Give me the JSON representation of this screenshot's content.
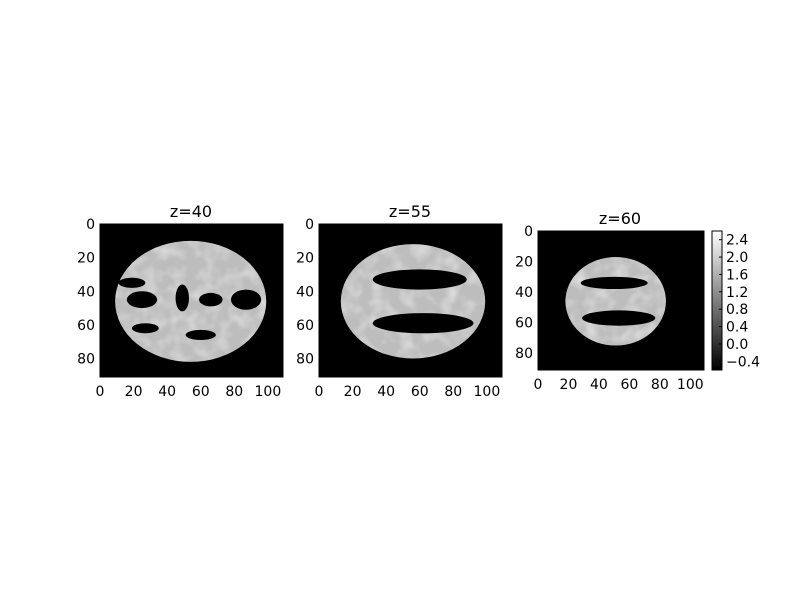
{
  "chart_data": {
    "type": "heatmap",
    "colormap": "gray",
    "colorbar": {
      "ticks": [
        "−0.4",
        "0.0",
        "0.4",
        "0.8",
        "1.2",
        "1.6",
        "2.0",
        "2.4"
      ],
      "range": [
        -0.6,
        2.6
      ]
    },
    "panels": [
      {
        "title": "z=40",
        "xlim": [
          0,
          109
        ],
        "ylim": [
          91,
          0
        ],
        "xticks": [
          "0",
          "20",
          "40",
          "60",
          "80",
          "100"
        ],
        "yticks": [
          "0",
          "20",
          "40",
          "60",
          "80"
        ],
        "brain": {
          "cx": 54,
          "cy": 46,
          "rx": 45,
          "ry": 36
        },
        "ventricles": [
          {
            "cx": 19,
            "cy": 35,
            "rx": 8,
            "ry": 3
          },
          {
            "cx": 25,
            "cy": 45,
            "rx": 9,
            "ry": 5
          },
          {
            "cx": 49,
            "cy": 44,
            "rx": 4,
            "ry": 8
          },
          {
            "cx": 66,
            "cy": 45,
            "rx": 7,
            "ry": 4
          },
          {
            "cx": 87,
            "cy": 45,
            "rx": 9,
            "ry": 6
          },
          {
            "cx": 60,
            "cy": 66,
            "rx": 9,
            "ry": 3
          },
          {
            "cx": 27,
            "cy": 62,
            "rx": 8,
            "ry": 3
          }
        ]
      },
      {
        "title": "z=55",
        "xlim": [
          0,
          109
        ],
        "ylim": [
          91,
          0
        ],
        "xticks": [
          "0",
          "20",
          "40",
          "60",
          "80",
          "100"
        ],
        "yticks": [
          "0",
          "20",
          "40",
          "60",
          "80"
        ],
        "brain": {
          "cx": 56,
          "cy": 46,
          "rx": 43,
          "ry": 34
        },
        "ventricles": [
          {
            "cx": 60,
            "cy": 33,
            "rx": 28,
            "ry": 6
          },
          {
            "cx": 62,
            "cy": 59,
            "rx": 30,
            "ry": 6
          }
        ]
      },
      {
        "title": "z=60",
        "xlim": [
          0,
          109
        ],
        "ylim": [
          91,
          0
        ],
        "xticks": [
          "0",
          "20",
          "40",
          "60",
          "80",
          "100"
        ],
        "yticks": [
          "0",
          "20",
          "40",
          "60",
          "80"
        ],
        "brain": {
          "cx": 51,
          "cy": 46,
          "rx": 33,
          "ry": 29
        },
        "ventricles": [
          {
            "cx": 50,
            "cy": 34,
            "rx": 22,
            "ry": 4
          },
          {
            "cx": 53,
            "cy": 57,
            "rx": 24,
            "ry": 5
          }
        ]
      }
    ]
  }
}
